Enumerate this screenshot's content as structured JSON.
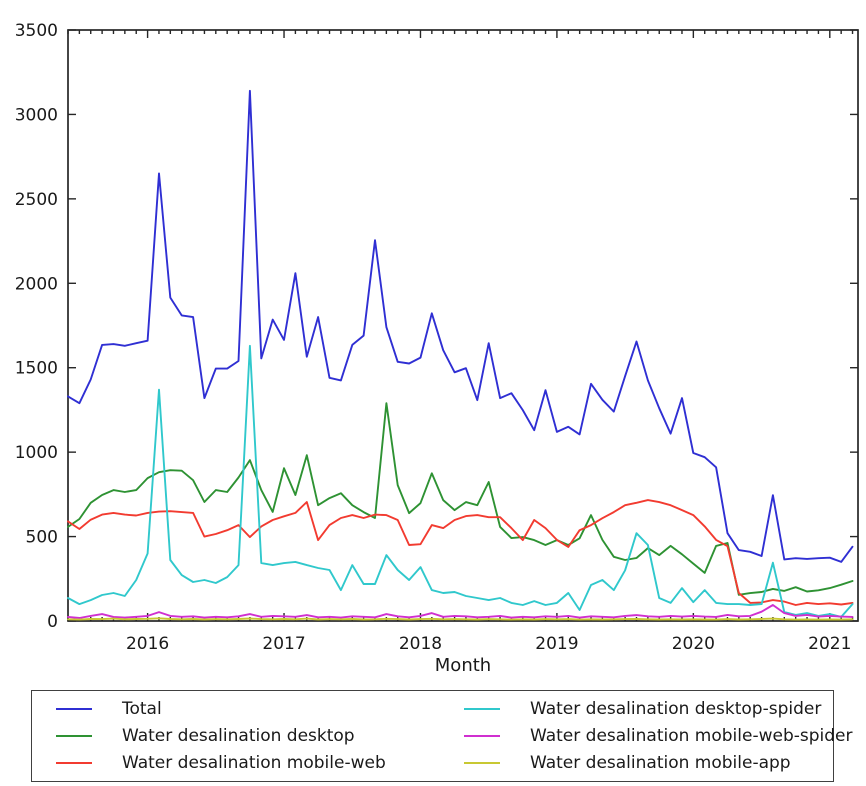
{
  "chart_data": {
    "type": "line",
    "title": "",
    "xlabel": "Month",
    "ylabel": "",
    "x_start": "2015-06",
    "x_end": "2021-03",
    "x_frequency": "monthly",
    "x_tick_labels": [
      "2016",
      "2017",
      "2018",
      "2019",
      "2020",
      "2021"
    ],
    "ylim": [
      0,
      3500
    ],
    "y_ticks": [
      0,
      500,
      1000,
      1500,
      2000,
      2500,
      3000,
      3500
    ],
    "grid": false,
    "legend_position": "bottom",
    "axis_color": "#262626",
    "series": [
      {
        "name": "Total",
        "color": "#2f2fd3",
        "values": [
          1330,
          1290,
          1430,
          1635,
          1640,
          1630,
          1645,
          1660,
          2650,
          1915,
          1810,
          1800,
          1320,
          1495,
          1495,
          1540,
          3140,
          1555,
          1785,
          1665,
          2060,
          1565,
          1800,
          1440,
          1425,
          1635,
          1690,
          2255,
          1740,
          1535,
          1525,
          1560,
          1822,
          1604,
          1473,
          1497,
          1308,
          1645,
          1320,
          1349,
          1249,
          1130,
          1367,
          1120,
          1150,
          1105,
          1405,
          1310,
          1240,
          1450,
          1655,
          1425,
          1260,
          1110,
          1320,
          995,
          970,
          910,
          520,
          420,
          410,
          385,
          745,
          365,
          372,
          368,
          372,
          375,
          350,
          440
        ]
      },
      {
        "name": "Water desalination desktop",
        "color": "#2e9233",
        "values": [
          557,
          604,
          700,
          746,
          775,
          764,
          775,
          846,
          881,
          893,
          890,
          834,
          705,
          775,
          764,
          850,
          953,
          775,
          646,
          905,
          746,
          982,
          686,
          728,
          757,
          686,
          645,
          610,
          1290,
          805,
          639,
          698,
          875,
          716,
          657,
          704,
          686,
          823,
          557,
          491,
          497,
          479,
          450,
          479,
          450,
          490,
          627,
          480,
          380,
          361,
          373,
          432,
          390,
          445,
          395,
          340,
          285,
          445,
          462,
          155,
          165,
          172,
          190,
          178,
          200,
          175,
          182,
          195,
          215,
          237
        ]
      },
      {
        "name": "Water desalination mobile-web",
        "color": "#f23b30",
        "values": [
          590,
          545,
          600,
          630,
          640,
          630,
          625,
          640,
          648,
          650,
          645,
          640,
          500,
          515,
          538,
          568,
          497,
          560,
          598,
          620,
          640,
          705,
          479,
          568,
          610,
          627,
          610,
          630,
          627,
          598,
          450,
          455,
          568,
          550,
          598,
          621,
          627,
          615,
          615,
          550,
          479,
          598,
          550,
          480,
          438,
          538,
          568,
          609,
          645,
          686,
          700,
          716,
          704,
          686,
          657,
          627,
          560,
          480,
          443,
          166,
          107,
          110,
          124,
          115,
          95,
          107,
          100,
          105,
          98,
          107
        ]
      },
      {
        "name": "Water desalination desktop-spider",
        "color": "#30c8cc",
        "values": [
          136,
          100,
          124,
          154,
          166,
          148,
          243,
          400,
          1370,
          361,
          272,
          231,
          243,
          225,
          260,
          331,
          1630,
          343,
          331,
          343,
          350,
          331,
          314,
          302,
          183,
          331,
          219,
          219,
          390,
          302,
          243,
          319,
          183,
          166,
          172,
          148,
          136,
          124,
          136,
          107,
          95,
          118,
          95,
          107,
          166,
          65,
          213,
          243,
          183,
          300,
          520,
          450,
          136,
          107,
          195,
          112,
          183,
          107,
          100,
          100,
          95,
          100,
          345,
          53,
          36,
          47,
          30,
          41,
          24,
          100
        ]
      },
      {
        "name": "Water desalination mobile-web-spider",
        "color": "#d02fd0",
        "values": [
          24,
          18,
          30,
          41,
          24,
          20,
          25,
          30,
          53,
          30,
          25,
          28,
          20,
          25,
          22,
          28,
          41,
          25,
          30,
          28,
          25,
          35,
          22,
          25,
          20,
          28,
          25,
          22,
          41,
          28,
          22,
          30,
          47,
          25,
          30,
          28,
          22,
          25,
          30,
          20,
          25,
          22,
          28,
          25,
          30,
          20,
          28,
          25,
          22,
          30,
          35,
          28,
          25,
          30,
          26,
          30,
          26,
          24,
          36,
          28,
          30,
          55,
          95,
          47,
          30,
          36,
          26,
          30,
          26,
          24
        ]
      },
      {
        "name": "Water desalination mobile-app",
        "color": "#c8c832",
        "values": [
          10,
          8,
          12,
          11,
          14,
          10,
          12,
          13,
          16,
          12,
          10,
          12,
          9,
          11,
          10,
          12,
          15,
          11,
          10,
          12,
          10,
          14,
          9,
          11,
          10,
          12,
          9,
          10,
          13,
          11,
          9,
          11,
          13,
          10,
          11,
          10,
          9,
          11,
          10,
          8,
          10,
          9,
          11,
          10,
          11,
          8,
          10,
          9,
          10,
          11,
          12,
          10,
          9,
          10,
          9,
          10,
          9,
          8,
          11,
          9,
          10,
          12,
          14,
          10,
          8,
          9,
          8,
          9,
          8,
          10
        ]
      }
    ]
  }
}
